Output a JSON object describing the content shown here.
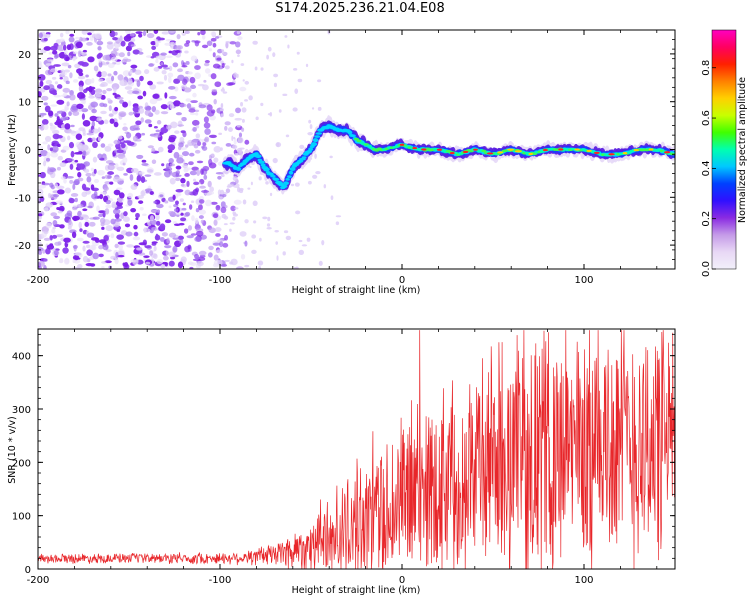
{
  "title": "S174.2025.236.21.04.E08",
  "colors": {
    "snr_line": "#e8262a",
    "speckle": "#8a2be2",
    "colorbar_stops": [
      "#f2f0fa",
      "#e8d8f5",
      "#c59be8",
      "#8a2be2",
      "#3010ff",
      "#0040ff",
      "#00c8ff",
      "#00ffb0",
      "#40ff00",
      "#c8ff00",
      "#ffd000",
      "#ff8000",
      "#ff2000",
      "#ff0060",
      "#ff00c0"
    ]
  },
  "chart_data": [
    {
      "type": "heatmap",
      "name": "spectrogram",
      "title": "S174.2025.236.21.04.E08",
      "xlabel": "Height of straight line (km)",
      "ylabel": "Frequency (Hz)",
      "xlim": [
        -200,
        150
      ],
      "ylim": [
        -25,
        25
      ],
      "x_ticks": [
        -200,
        -100,
        0,
        100
      ],
      "y_ticks": [
        -20,
        -10,
        0,
        10,
        20
      ],
      "ridge": {
        "x": [
          -95,
          -90,
          -85,
          -80,
          -75,
          -70,
          -65,
          -60,
          -55,
          -50,
          -45,
          -40,
          -35,
          -30,
          -25,
          -20,
          -15,
          -10,
          0,
          10,
          20,
          30,
          40,
          50,
          60,
          70,
          80,
          90,
          100,
          110,
          120,
          130,
          140,
          150
        ],
        "frequency_hz": [
          -3,
          -4,
          -2,
          -1,
          -4,
          -6,
          -8,
          -4,
          -2,
          0,
          4,
          5,
          4,
          4,
          2,
          1,
          0,
          0,
          1,
          0,
          0,
          -1,
          0,
          -1,
          0,
          -1,
          0,
          0,
          0,
          -1,
          -1,
          0,
          0,
          -1
        ]
      },
      "colorbar": {
        "label": "Normalized spectral amplitude",
        "ticks": [
          "0.0",
          "0.2",
          "0.4",
          "0.6",
          "0.8"
        ],
        "range": [
          0,
          0.95
        ]
      }
    },
    {
      "type": "line",
      "name": "snr",
      "xlabel": "Height of straight line (km)",
      "ylabel": "SNR (10 * v/v)",
      "xlim": [
        -200,
        150
      ],
      "ylim": [
        0,
        450
      ],
      "x_ticks": [
        -200,
        -100,
        0,
        100
      ],
      "y_ticks": [
        0,
        100,
        200,
        300,
        400
      ],
      "series": [
        {
          "name": "SNR",
          "x": [
            -200,
            -180,
            -160,
            -140,
            -120,
            -100,
            -90,
            -80,
            -70,
            -60,
            -50,
            -40,
            -30,
            -20,
            -10,
            0,
            10,
            20,
            30,
            40,
            50,
            60,
            70,
            80,
            90,
            100,
            110,
            120,
            130,
            140,
            150
          ],
          "baseline": [
            20,
            20,
            20,
            20,
            20,
            20,
            21,
            23,
            28,
            35,
            45,
            60,
            75,
            95,
            110,
            130,
            150,
            165,
            180,
            195,
            205,
            210,
            215,
            220,
            225,
            230,
            235,
            240,
            240,
            240,
            240
          ],
          "envelope": [
            8,
            9,
            9,
            9,
            10,
            10,
            12,
            16,
            24,
            35,
            55,
            75,
            95,
            110,
            130,
            150,
            165,
            170,
            180,
            190,
            200,
            210,
            215,
            220,
            220,
            230,
            230,
            230,
            230,
            230,
            230
          ],
          "peak_values": [
            45,
            40,
            440,
            415,
            380
          ]
        }
      ]
    }
  ]
}
